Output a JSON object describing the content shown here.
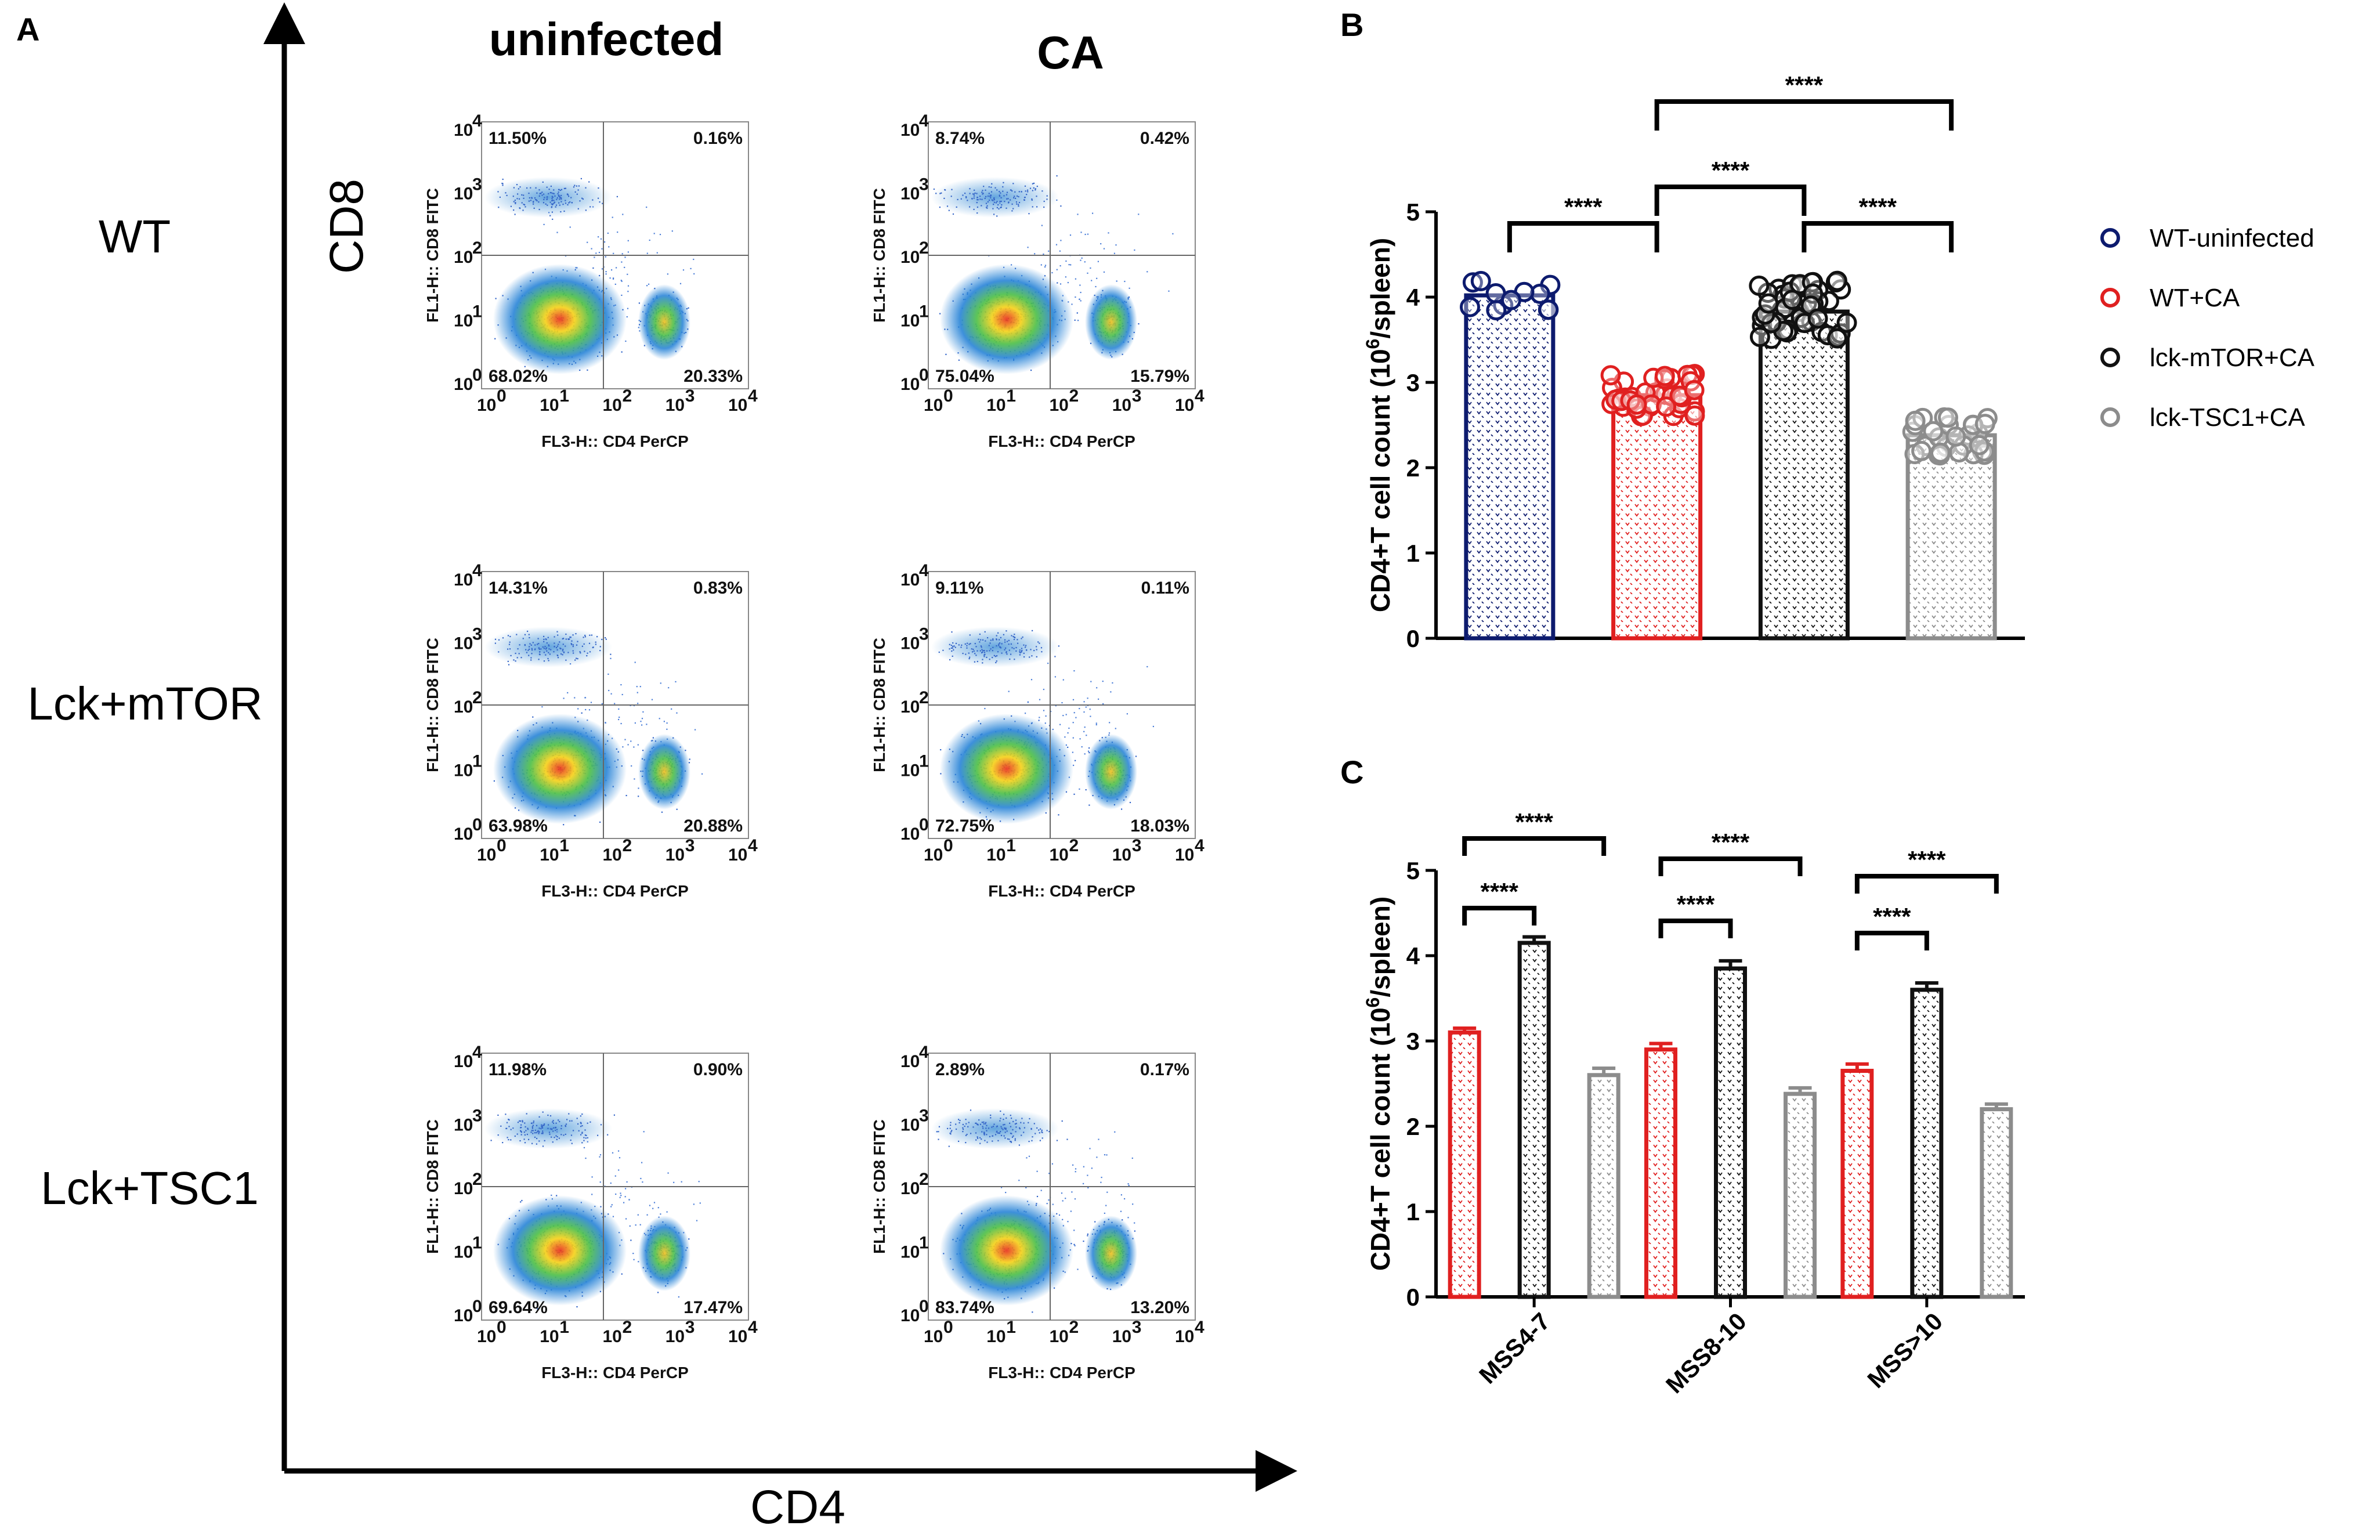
{
  "panel_labels": {
    "a": "A",
    "b": "B",
    "c": "C"
  },
  "panel_a": {
    "column_labels": [
      "uninfected",
      "CA"
    ],
    "row_labels": [
      "WT",
      "Lck+mTOR",
      "Lck+TSC1"
    ],
    "y_big_label": "CD8",
    "x_big_label": "CD4",
    "flow_x_axis_label": "FL3-H:: CD4 PerCP",
    "flow_y_axis_label": "FL1-H:: CD8 FITC",
    "tick_exponents": [
      "0",
      "1",
      "2",
      "3",
      "4"
    ],
    "tick_base": "10",
    "plots": [
      {
        "row": 0,
        "col": 0,
        "ul": "11.50%",
        "ur": "0.16%",
        "ll": "68.02%",
        "lr": "20.33%"
      },
      {
        "row": 0,
        "col": 1,
        "ul": "8.74%",
        "ur": "0.42%",
        "ll": "75.04%",
        "lr": "15.79%"
      },
      {
        "row": 1,
        "col": 0,
        "ul": "14.31%",
        "ur": "0.83%",
        "ll": "63.98%",
        "lr": "20.88%"
      },
      {
        "row": 1,
        "col": 1,
        "ul": "9.11%",
        "ur": "0.11%",
        "ll": "72.75%",
        "lr": "18.03%"
      },
      {
        "row": 2,
        "col": 0,
        "ul": "11.98%",
        "ur": "0.90%",
        "ll": "69.64%",
        "lr": "17.47%"
      },
      {
        "row": 2,
        "col": 1,
        "ul": "2.89%",
        "ur": "0.17%",
        "ll": "83.74%",
        "lr": "13.20%"
      }
    ]
  },
  "colors": {
    "navy": "#0d1b6e",
    "red": "#e02020",
    "black": "#111111",
    "gray": "#8c8c8c"
  },
  "chart_data": [
    {
      "type": "bar",
      "panel": "B",
      "categories": [
        "WT-uninfected",
        "WT+CA",
        "lck-mTOR+CA",
        "lck-TSC1+CA"
      ],
      "values": [
        4.02,
        2.85,
        3.83,
        2.38
      ],
      "point_counts": [
        12,
        40,
        48,
        30
      ],
      "point_spread": [
        0.22,
        0.32,
        0.45,
        0.3
      ],
      "ylabel_prefix": "CD4+T cell count (10",
      "ylabel_sup": "6",
      "ylabel_suffix": "/spleen)",
      "ylim": [
        0,
        5
      ],
      "yticks": [
        "0",
        "1",
        "2",
        "3",
        "4",
        "5"
      ],
      "legend": [
        "WT-uninfected",
        "WT+CA",
        "lck-mTOR+CA",
        "lck-TSC1+CA"
      ],
      "legend_position": "right",
      "significance": [
        {
          "from": 0,
          "to": 1,
          "label": "****"
        },
        {
          "from": 1,
          "to": 2,
          "label": "****"
        },
        {
          "from": 2,
          "to": 3,
          "label": "****"
        },
        {
          "from": 1,
          "to": 3,
          "label": "****"
        }
      ]
    },
    {
      "type": "bar",
      "panel": "C",
      "categories": [
        "MSS4-7",
        "MSS8-10",
        "MSS>10"
      ],
      "series": [
        {
          "name": "WT+CA",
          "values": [
            3.1,
            2.9,
            2.65
          ],
          "errors": [
            0.05,
            0.07,
            0.08
          ]
        },
        {
          "name": "lck-mTOR+CA",
          "values": [
            4.15,
            3.85,
            3.6
          ],
          "errors": [
            0.07,
            0.09,
            0.08
          ]
        },
        {
          "name": "lck-TSC1+CA",
          "values": [
            2.6,
            2.38,
            2.2
          ],
          "errors": [
            0.08,
            0.07,
            0.06
          ]
        }
      ],
      "ylabel_prefix": "CD4+T cell count (10",
      "ylabel_sup": "6",
      "ylabel_suffix": "/spleen)",
      "ylim": [
        0,
        5
      ],
      "yticks": [
        "0",
        "1",
        "2",
        "3",
        "4",
        "5"
      ],
      "significance": [
        {
          "category": 0,
          "from": 0,
          "to": 1,
          "label": "****"
        },
        {
          "category": 0,
          "from": 0,
          "to": 2,
          "label": "****"
        },
        {
          "category": 1,
          "from": 0,
          "to": 1,
          "label": "****"
        },
        {
          "category": 1,
          "from": 0,
          "to": 2,
          "label": "****"
        },
        {
          "category": 2,
          "from": 0,
          "to": 1,
          "label": "****"
        },
        {
          "category": 2,
          "from": 0,
          "to": 2,
          "label": "****"
        }
      ]
    }
  ]
}
